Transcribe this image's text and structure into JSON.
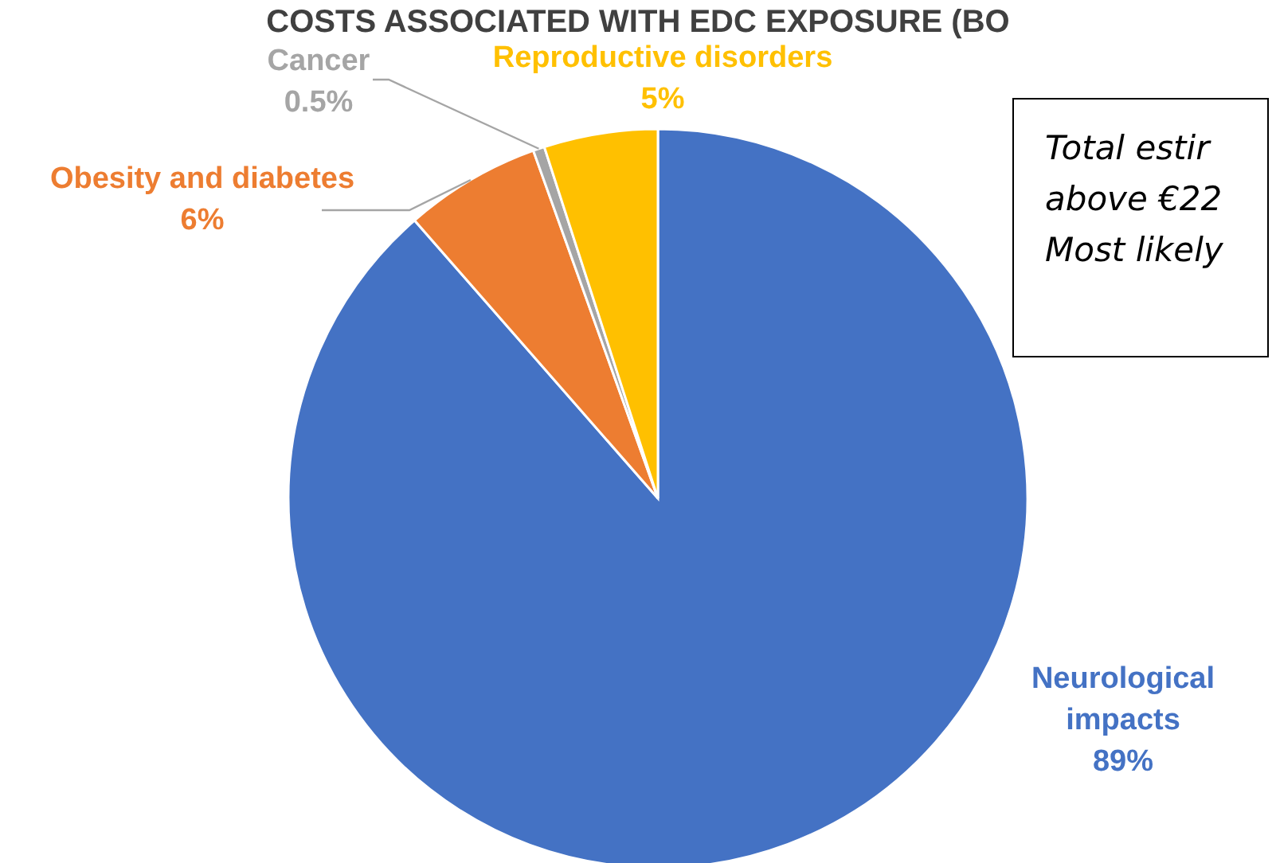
{
  "chart_data": {
    "type": "pie",
    "title": "COSTS ASSOCIATED WITH EDC EXPOSURE (BO",
    "categories": [
      "Neurological impacts",
      "Obesity and diabetes",
      "Cancer",
      "Reproductive disorders"
    ],
    "values": [
      89,
      6,
      0.5,
      5
    ],
    "colors": [
      "#4472c4",
      "#ed7d31",
      "#a5a5a5",
      "#ffc000"
    ],
    "value_labels": [
      "89%",
      "6%",
      "0.5%",
      "5%"
    ],
    "annotations": [
      "Total estir",
      "above €22",
      "Most likely"
    ]
  }
}
